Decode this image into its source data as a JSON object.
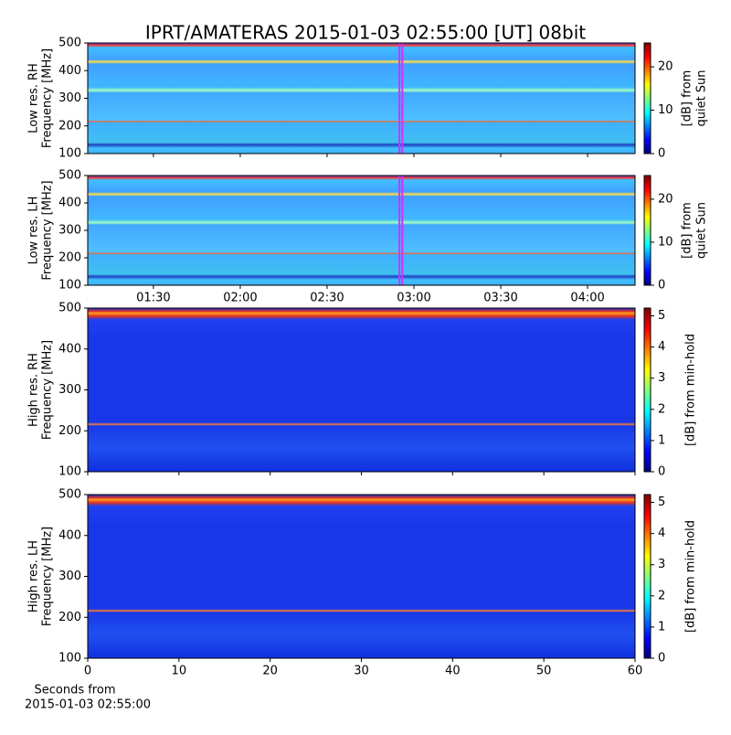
{
  "title": "IPRT/AMATERAS 2015-01-03 02:55:00 [UT]   08bit",
  "chart_data": [
    {
      "type": "heatmap",
      "ylabel": [
        "Low res. RH",
        "Frequency [MHz]"
      ],
      "ylim": [
        100,
        500
      ],
      "yticks": [
        100,
        200,
        300,
        400,
        500
      ],
      "xlim": [
        67.3,
        256.4
      ],
      "xticks": [
        90,
        120,
        150,
        180,
        210,
        240
      ],
      "xtick_labels": false,
      "vspan": [
        175,
        176
      ],
      "vspan_color": "#cc33ff",
      "colorbar": {
        "label": [
          "[dB] from",
          "quiet Sun"
        ],
        "lim": [
          0,
          25.5
        ],
        "ticks": [
          0,
          10,
          20
        ]
      }
    },
    {
      "type": "heatmap",
      "ylabel": [
        "Low res. LH",
        "Frequency [MHz]"
      ],
      "ylim": [
        100,
        500
      ],
      "yticks": [
        100,
        200,
        300,
        400,
        500
      ],
      "xlim": [
        67.3,
        256.4
      ],
      "xticks": [
        {
          "value": 90,
          "label": "01:30"
        },
        {
          "value": 120,
          "label": "02:00"
        },
        {
          "value": 150,
          "label": "02:30"
        },
        {
          "value": 180,
          "label": "03:00"
        },
        {
          "value": 210,
          "label": "03:30"
        },
        {
          "value": 240,
          "label": "04:00"
        }
      ],
      "xtick_labels": true,
      "vspan": [
        175,
        176
      ],
      "vspan_color": "#cc33ff",
      "colorbar": {
        "label": [
          "[dB] from",
          "quiet Sun"
        ],
        "lim": [
          0,
          25.5
        ],
        "ticks": [
          0,
          10,
          20
        ]
      }
    },
    {
      "type": "heatmap",
      "ylabel": [
        "High res. RH",
        "Frequency [MHz]"
      ],
      "ylim": [
        100,
        500
      ],
      "yticks": [
        100,
        200,
        300,
        400,
        500
      ],
      "xlim": [
        0,
        60
      ],
      "xticks": [
        0,
        10,
        20,
        30,
        40,
        50,
        60
      ],
      "xtick_labels": false,
      "colorbar": {
        "label": [
          "[dB] from min-hold"
        ],
        "lim": [
          0,
          5.25
        ],
        "ticks": [
          0,
          1,
          2,
          3,
          4,
          5
        ]
      }
    },
    {
      "type": "heatmap",
      "ylabel": [
        "High res. LH",
        "Frequency [MHz]"
      ],
      "ylim": [
        100,
        500
      ],
      "yticks": [
        100,
        200,
        300,
        400,
        500
      ],
      "xlim": [
        0,
        60
      ],
      "xticks": [
        0,
        10,
        20,
        30,
        40,
        50,
        60
      ],
      "xtick_labels": true,
      "xlabel": [
        "Seconds from",
        "2015-01-03 02:55:00"
      ],
      "colorbar": {
        "label": [
          "[dB] from min-hold"
        ],
        "lim": [
          0,
          5.25
        ],
        "ticks": [
          0,
          1,
          2,
          3,
          4,
          5
        ]
      }
    }
  ]
}
